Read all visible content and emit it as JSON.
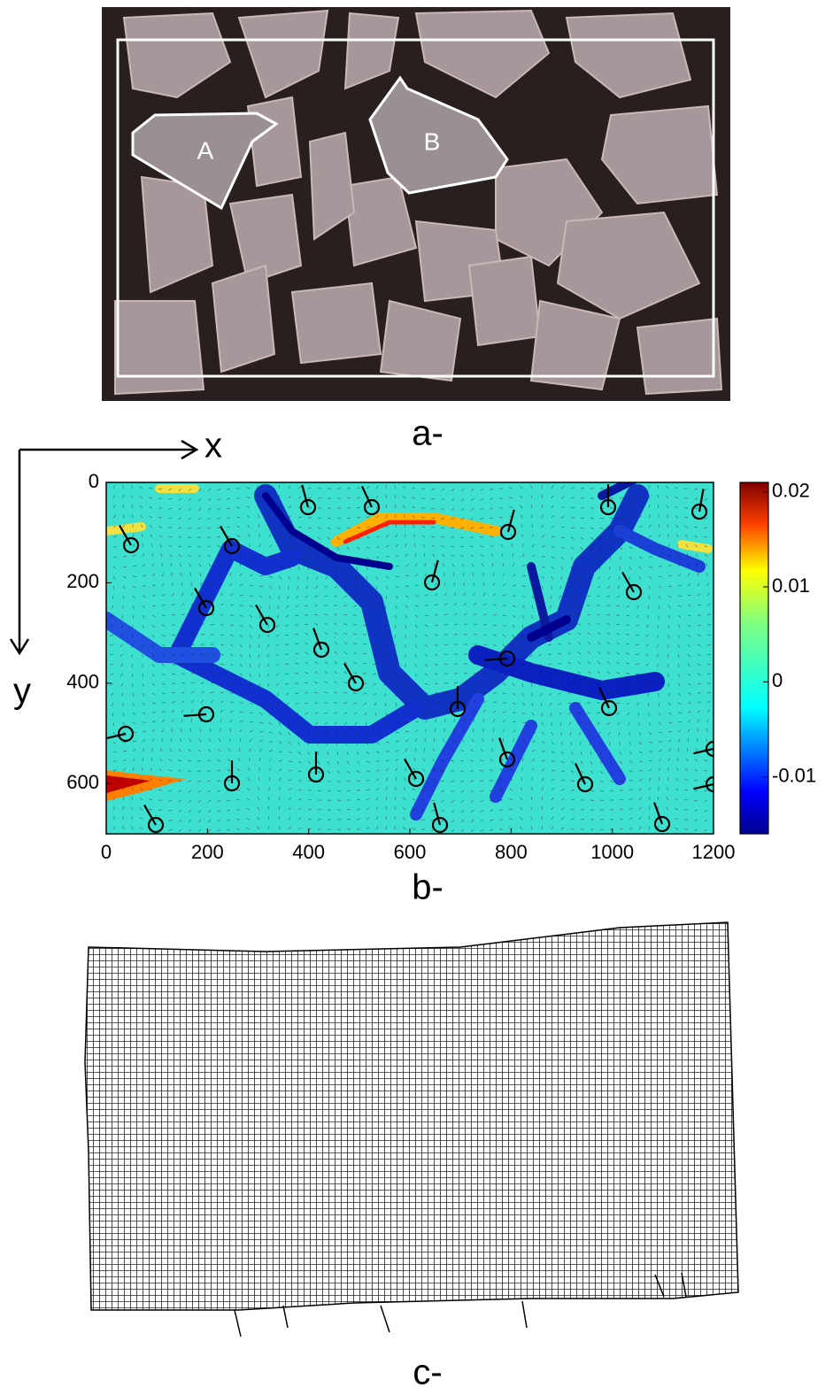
{
  "panel_a": {
    "region_labels": [
      "A",
      "B"
    ],
    "caption": "a-"
  },
  "panel_b": {
    "axis_labels": {
      "x": "x",
      "y": "y"
    },
    "xlim": [
      0,
      1200
    ],
    "xticks": [
      0,
      200,
      400,
      600,
      800,
      1000,
      1200
    ],
    "ylim": [
      0,
      700
    ],
    "yticks": [
      0,
      200,
      400,
      600
    ],
    "colorbar": {
      "lim": [
        -0.016,
        0.021
      ],
      "ticks": [
        0.02,
        0.01,
        0,
        -0.01
      ]
    },
    "caption": "b-"
  },
  "panel_c": {
    "caption": "c-"
  }
}
